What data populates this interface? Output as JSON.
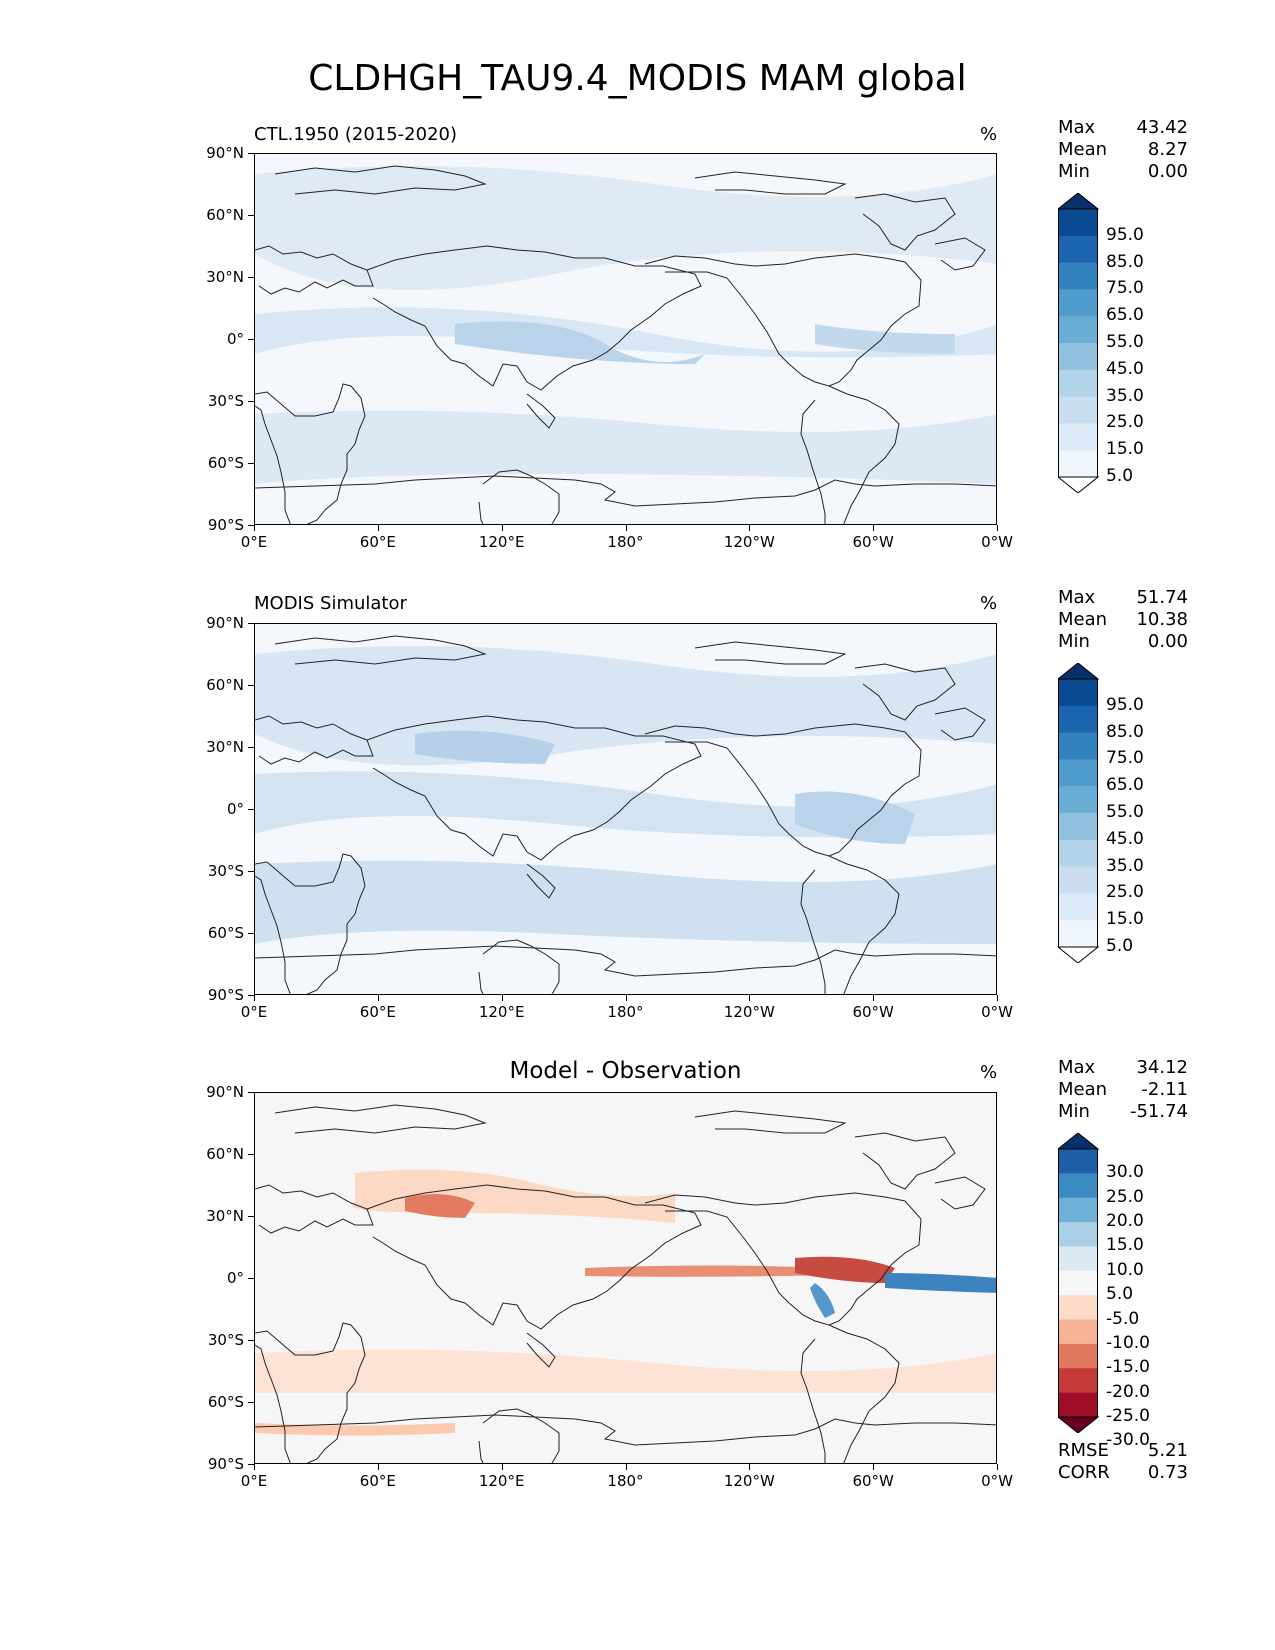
{
  "title": "CLDHGH_TAU9.4_MODIS MAM global",
  "axes": {
    "y_ticks": [
      "90°N",
      "60°N",
      "30°N",
      "0°",
      "30°S",
      "60°S",
      "90°S"
    ],
    "x_ticks": [
      "0°E",
      "60°E",
      "120°E",
      "180°",
      "120°W",
      "60°W",
      "0°W"
    ]
  },
  "panels": [
    {
      "label": "CTL.1950 (2015-2020)",
      "units": "%",
      "stats": [
        {
          "name": "Max",
          "value": "43.42"
        },
        {
          "name": "Mean",
          "value": "8.27"
        },
        {
          "name": "Min",
          "value": "0.00"
        }
      ],
      "colorbar": {
        "labels": [
          "95.0",
          "85.0",
          "75.0",
          "65.0",
          "55.0",
          "45.0",
          "35.0",
          "25.0",
          "15.0",
          "5.0"
        ],
        "colors": [
          "#08306b",
          "#0a4a90",
          "#1c64ad",
          "#3282bd",
          "#4f9bcb",
          "#6aaed6",
          "#8fc1de",
          "#b3d3e8",
          "#cadef0",
          "#dce9f6",
          "#eef5fc",
          "#ffffff"
        ]
      }
    },
    {
      "label": "MODIS Simulator",
      "units": "%",
      "stats": [
        {
          "name": "Max",
          "value": "51.74"
        },
        {
          "name": "Mean",
          "value": "10.38"
        },
        {
          "name": "Min",
          "value": "0.00"
        }
      ],
      "colorbar": {
        "labels": [
          "95.0",
          "85.0",
          "75.0",
          "65.0",
          "55.0",
          "45.0",
          "35.0",
          "25.0",
          "15.0",
          "5.0"
        ],
        "colors": [
          "#08306b",
          "#0a4a90",
          "#1c64ad",
          "#3282bd",
          "#4f9bcb",
          "#6aaed6",
          "#8fc1de",
          "#b3d3e8",
          "#cadef0",
          "#dce9f6",
          "#eef5fc",
          "#ffffff"
        ]
      }
    },
    {
      "label": "Model - Observation",
      "units": "%",
      "stats": [
        {
          "name": "Max",
          "value": "34.12"
        },
        {
          "name": "Mean",
          "value": "-2.11"
        },
        {
          "name": "Min",
          "value": "-51.74"
        }
      ],
      "colorbar": {
        "labels": [
          "30.0",
          "25.0",
          "20.0",
          "15.0",
          "10.0",
          "5.0",
          "-5.0",
          "-10.0",
          "-15.0",
          "-20.0",
          "-25.0",
          "-30.0"
        ],
        "colors": [
          "#08306b",
          "#1f5fa8",
          "#3b8ac2",
          "#6fb0d7",
          "#a9d0e6",
          "#dbeaf2",
          "#f7f7f7",
          "#fcdbc8",
          "#f6b295",
          "#e2795f",
          "#c43b3a",
          "#9e0f27",
          "#67001f"
        ]
      },
      "extra_stats": [
        {
          "name": "RMSE",
          "value": "5.21"
        },
        {
          "name": "CORR",
          "value": "0.73"
        }
      ]
    }
  ]
}
